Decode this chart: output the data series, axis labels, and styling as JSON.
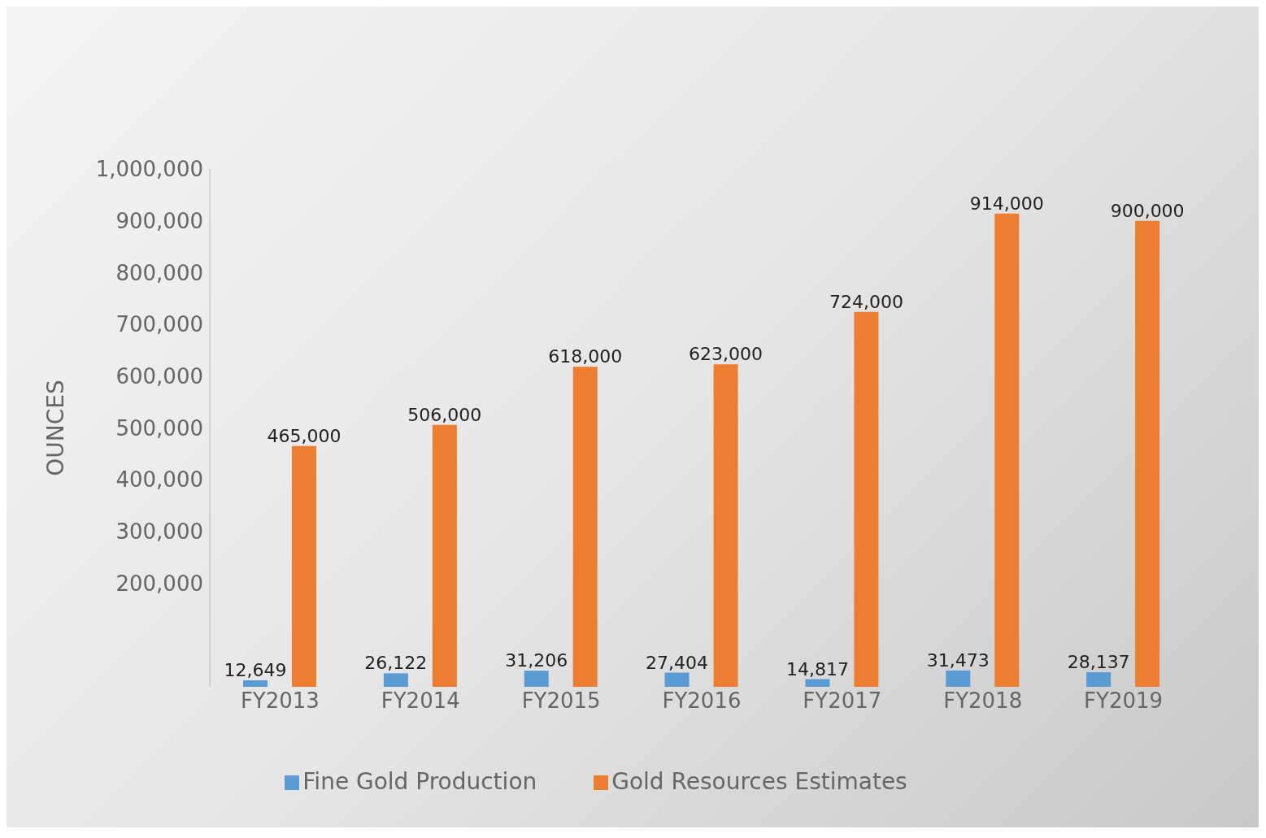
{
  "chart_data": {
    "type": "bar",
    "ylabel": "OUNCES",
    "categories": [
      "FY2013",
      "FY2014",
      "FY2015",
      "FY2016",
      "FY2017",
      "FY2018",
      "FY2019"
    ],
    "series": [
      {
        "name": "Fine Gold Production",
        "color": "#5b9bd5",
        "values": [
          12649,
          26122,
          31206,
          27404,
          14817,
          31473,
          28137
        ],
        "value_labels": [
          "12,649",
          "26,122",
          "31,206",
          "27,404",
          "14,817",
          "31,473",
          "28,137"
        ]
      },
      {
        "name": "Gold Resources Estimates",
        "color": "#ed7d31",
        "values": [
          465000,
          506000,
          618000,
          623000,
          724000,
          914000,
          900000
        ],
        "value_labels": [
          "465,000",
          "506,000",
          "618,000",
          "623,000",
          "724,000",
          "914,000",
          "900,000"
        ]
      }
    ],
    "ylim": [
      0,
      1000000
    ],
    "yticks": [
      {
        "value": 200000,
        "label": "200,000"
      },
      {
        "value": 300000,
        "label": "300,000"
      },
      {
        "value": 400000,
        "label": "400,000"
      },
      {
        "value": 500000,
        "label": "500,000"
      },
      {
        "value": 600000,
        "label": "600,000"
      },
      {
        "value": 700000,
        "label": "700,000"
      },
      {
        "value": 800000,
        "label": "800,000"
      },
      {
        "value": 900000,
        "label": "900,000"
      },
      {
        "value": 1000000,
        "label": "1,000,000"
      }
    ],
    "legend": "bottom",
    "grid": false
  }
}
